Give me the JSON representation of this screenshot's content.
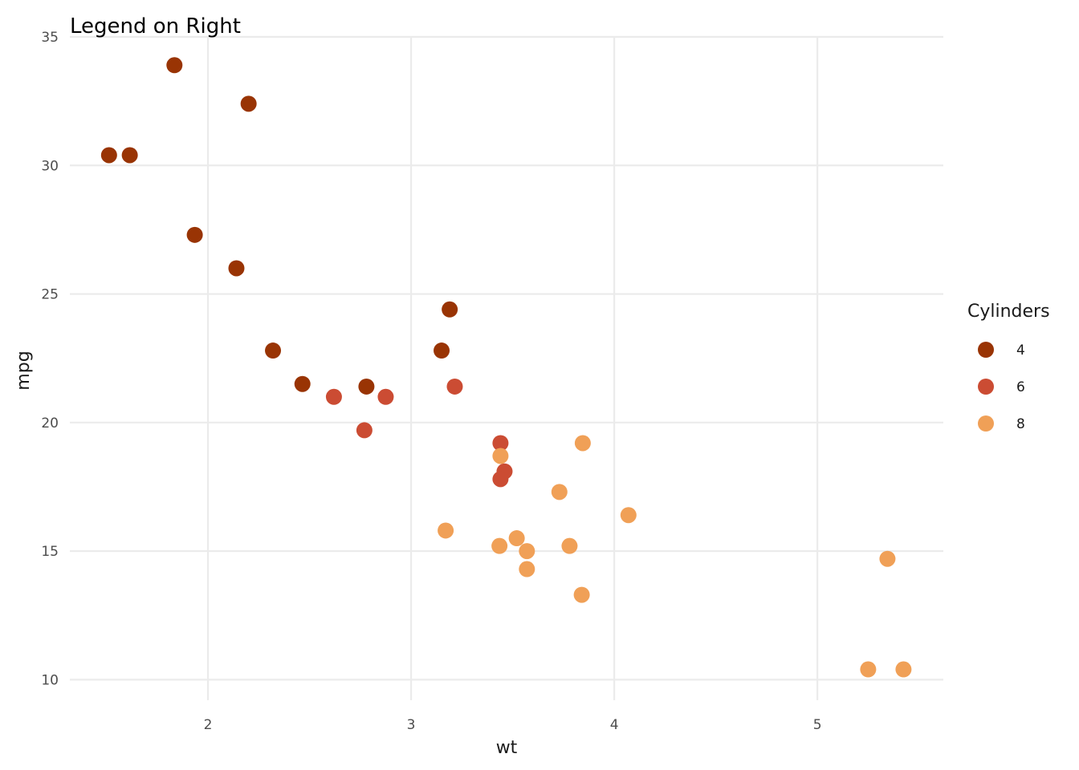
{
  "chart_data": {
    "type": "scatter",
    "title": "Legend on Right",
    "xlabel": "wt",
    "ylabel": "mpg",
    "xlim": [
      1.32,
      5.62
    ],
    "ylim": [
      9.2,
      35.0
    ],
    "x_ticks": [
      2,
      3,
      4,
      5
    ],
    "y_ticks": [
      10,
      15,
      20,
      25,
      30,
      35
    ],
    "grid": true,
    "legend": {
      "title": "Cylinders",
      "placement": "right",
      "entries": [
        {
          "label": "4",
          "color": "#993404"
        },
        {
          "label": "6",
          "color": "#cb4c33"
        },
        {
          "label": "8",
          "color": "#f0a057"
        }
      ]
    },
    "series": [
      {
        "name": "4",
        "color": "#993404",
        "points": [
          {
            "x": 1.835,
            "y": 33.9
          },
          {
            "x": 2.2,
            "y": 32.4
          },
          {
            "x": 1.513,
            "y": 30.4
          },
          {
            "x": 1.615,
            "y": 30.4
          },
          {
            "x": 1.935,
            "y": 27.3
          },
          {
            "x": 2.14,
            "y": 26.0
          },
          {
            "x": 3.19,
            "y": 24.4
          },
          {
            "x": 2.32,
            "y": 22.8
          },
          {
            "x": 3.15,
            "y": 22.8
          },
          {
            "x": 2.465,
            "y": 21.5
          },
          {
            "x": 2.78,
            "y": 21.4
          }
        ]
      },
      {
        "name": "6",
        "color": "#cb4c33",
        "points": [
          {
            "x": 2.62,
            "y": 21.0
          },
          {
            "x": 2.875,
            "y": 21.0
          },
          {
            "x": 3.215,
            "y": 21.4
          },
          {
            "x": 2.77,
            "y": 19.7
          },
          {
            "x": 3.44,
            "y": 19.2
          },
          {
            "x": 3.46,
            "y": 18.1
          },
          {
            "x": 3.44,
            "y": 17.8
          }
        ]
      },
      {
        "name": "8",
        "color": "#f0a057",
        "points": [
          {
            "x": 3.44,
            "y": 18.7
          },
          {
            "x": 3.845,
            "y": 19.2
          },
          {
            "x": 3.73,
            "y": 17.3
          },
          {
            "x": 4.07,
            "y": 16.4
          },
          {
            "x": 3.17,
            "y": 15.8
          },
          {
            "x": 3.52,
            "y": 15.5
          },
          {
            "x": 3.435,
            "y": 15.2
          },
          {
            "x": 3.78,
            "y": 15.2
          },
          {
            "x": 3.57,
            "y": 15.0
          },
          {
            "x": 3.57,
            "y": 14.3
          },
          {
            "x": 3.84,
            "y": 13.3
          },
          {
            "x": 5.345,
            "y": 14.7
          },
          {
            "x": 5.25,
            "y": 10.4
          },
          {
            "x": 5.424,
            "y": 10.4
          }
        ]
      }
    ]
  }
}
